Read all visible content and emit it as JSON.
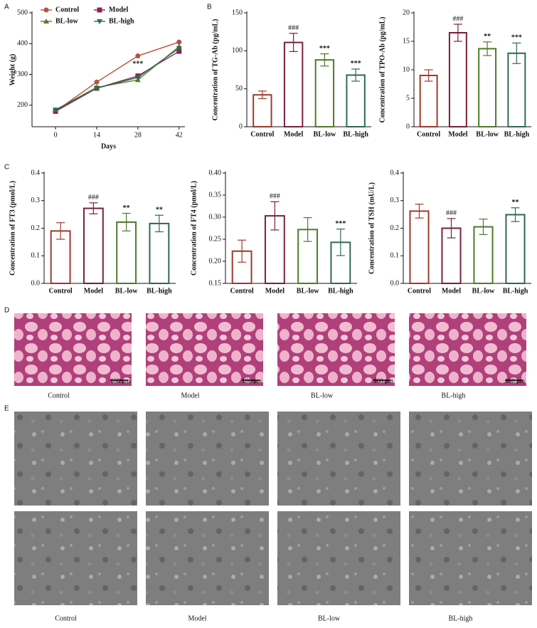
{
  "chart_data": [
    {
      "type": "line",
      "panel": "A",
      "xlabel": "Days",
      "ylabel": "Weight (g)",
      "x": [
        0,
        14,
        28,
        42
      ],
      "xlim": [
        -8,
        44
      ],
      "xticks": [
        0,
        14,
        28,
        42
      ],
      "ylim": [
        130,
        500
      ],
      "yticks": [
        200,
        300,
        400,
        500
      ],
      "series": [
        {
          "name": "Control",
          "color": "#b4533c",
          "marker": "circle",
          "values": [
            180,
            275,
            360,
            405
          ]
        },
        {
          "name": "Model",
          "color": "#8b2252",
          "marker": "square",
          "values": [
            180,
            255,
            295,
            375
          ]
        },
        {
          "name": "BL-low",
          "color": "#5a7a2a",
          "marker": "triangle",
          "values": [
            185,
            258,
            282,
            390
          ]
        },
        {
          "name": "BL-high",
          "color": "#2e6b50",
          "marker": "triangle-down",
          "values": [
            185,
            255,
            290,
            385
          ]
        }
      ],
      "annotations": [
        {
          "x": 28,
          "y": 315,
          "text": "***"
        }
      ]
    },
    {
      "type": "bar",
      "panel": "B",
      "ylabel": "Concentration of TG-Ab (pg/mL)",
      "categories": [
        "Control",
        "Model",
        "BL-low",
        "BL-high"
      ],
      "colors": [
        "#a0392b",
        "#7a1f3d",
        "#4f7a28",
        "#2f6a4f"
      ],
      "values": [
        42,
        111,
        88,
        68
      ],
      "errors": [
        5,
        12,
        8,
        8
      ],
      "annotations": [
        null,
        "###",
        "***",
        "***"
      ],
      "ylim": [
        0,
        150
      ],
      "yticks": [
        0,
        50,
        100,
        150
      ]
    },
    {
      "type": "bar",
      "ylabel": "Concentration of TPO-Ab (pg/mL)",
      "categories": [
        "Control",
        "Model",
        "BL-low",
        "BL-high"
      ],
      "colors": [
        "#a0392b",
        "#7a1f3d",
        "#4f7a28",
        "#2f6a4f"
      ],
      "values": [
        9,
        16.5,
        13.7,
        12.9
      ],
      "errors": [
        1,
        1.5,
        1.2,
        1.8
      ],
      "annotations": [
        null,
        "###",
        "**",
        "***"
      ],
      "ylim": [
        0,
        20
      ],
      "yticks": [
        0,
        5,
        10,
        15,
        20
      ]
    },
    {
      "type": "bar",
      "panel": "C",
      "ylabel": "Concentration of FT3 (pmol/L)",
      "categories": [
        "Control",
        "Model",
        "BL-low",
        "BL-high"
      ],
      "colors": [
        "#a0392b",
        "#7a1f3d",
        "#4f7a28",
        "#2f6a4f"
      ],
      "values": [
        0.19,
        0.272,
        0.222,
        0.217
      ],
      "errors": [
        0.03,
        0.02,
        0.032,
        0.03
      ],
      "annotations": [
        null,
        "###",
        "**",
        "**"
      ],
      "ylim": [
        0,
        0.4
      ],
      "yticks": [
        {
          "value": 0,
          "label": "0.0"
        },
        0.1,
        0.2,
        0.3,
        0.4
      ]
    },
    {
      "type": "bar",
      "ylabel": "Concentration of FT4 (pmol/L)",
      "categories": [
        "Control",
        "Model",
        "BL-low",
        "BL-high"
      ],
      "colors": [
        "#a0392b",
        "#7a1f3d",
        "#4f7a28",
        "#2f6a4f"
      ],
      "values": [
        0.223,
        0.303,
        0.272,
        0.243
      ],
      "errors": [
        0.025,
        0.032,
        0.027,
        0.03
      ],
      "annotations": [
        null,
        "###",
        null,
        "***"
      ],
      "ylim": [
        0.15,
        0.4
      ],
      "yticks": [
        0.15,
        {
          "value": 0.2,
          "label": "0.20"
        },
        0.25,
        {
          "value": 0.3,
          "label": "0.30"
        },
        0.35,
        {
          "value": 0.4,
          "label": "0.40"
        }
      ]
    },
    {
      "type": "bar",
      "ylabel": "Concentration of TSH (mU/L)",
      "categories": [
        "Control",
        "Model",
        "BL-low",
        "BL-high"
      ],
      "colors": [
        "#a0392b",
        "#7a1f3d",
        "#4f7a28",
        "#2f6a4f"
      ],
      "values": [
        0.262,
        0.2,
        0.205,
        0.249
      ],
      "errors": [
        0.025,
        0.035,
        0.028,
        0.025
      ],
      "annotations": [
        null,
        "###",
        null,
        "**"
      ],
      "ylim": [
        0,
        0.4
      ],
      "yticks": [
        {
          "value": 0,
          "label": "0.0"
        },
        0.1,
        0.2,
        0.3,
        0.4
      ]
    }
  ],
  "histology": {
    "panel": "D",
    "captions": [
      "Control",
      "Model",
      "BL-low",
      "BL-high"
    ],
    "scale_bar": "100 μm"
  },
  "electron_microscopy": {
    "panel": "E",
    "captions": [
      "Control",
      "Model",
      "BL-low",
      "BL-high"
    ]
  }
}
